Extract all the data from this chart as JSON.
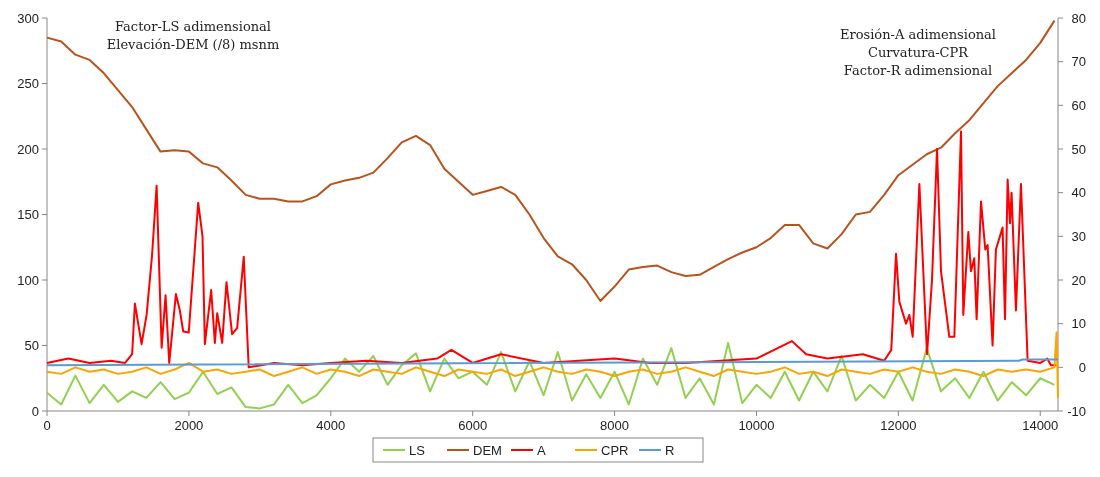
{
  "chart_data": {
    "type": "line",
    "ylabel": "Factor-LS adimensional\nElevación-DEM (/8) msnm",
    "y2label": "Erosión-A adimensional\nCurvatura-CPR\nFactor-R adimensional",
    "x": [
      0,
      200,
      400,
      600,
      800,
      1000,
      1200,
      1400,
      1600,
      1800,
      2000,
      2200,
      2400,
      2600,
      2800,
      3000,
      3200,
      3400,
      3600,
      3800,
      4000,
      4200,
      4400,
      4600,
      4800,
      5000,
      5200,
      5400,
      5600,
      5800,
      6000,
      6200,
      6400,
      6600,
      6800,
      7000,
      7200,
      7400,
      7600,
      7800,
      8000,
      8200,
      8400,
      8600,
      8800,
      9000,
      9200,
      9400,
      9600,
      9800,
      10000,
      10200,
      10400,
      10600,
      10800,
      11000,
      11200,
      11400,
      11600,
      11800,
      12000,
      12200,
      12400,
      12600,
      12800,
      13000,
      13200,
      13400,
      13600,
      13800,
      14000,
      14200
    ],
    "xlim": [
      0,
      14250
    ],
    "xticks": [
      0,
      2000,
      4000,
      6000,
      8000,
      10000,
      12000,
      14000
    ],
    "ylim": [
      0,
      300
    ],
    "yticks": [
      0,
      50,
      100,
      150,
      200,
      250,
      300
    ],
    "y2lim": [
      -10,
      80
    ],
    "y2ticks": [
      -10,
      0,
      10,
      20,
      30,
      40,
      50,
      60,
      70,
      80
    ],
    "legend": "bottom",
    "grid": false,
    "series": [
      {
        "name": "LS",
        "color": "#92d050",
        "values": [
          14,
          5,
          27,
          6,
          20,
          7,
          15,
          10,
          22,
          9,
          14,
          30,
          13,
          18,
          3,
          2,
          5,
          20,
          6,
          12,
          25,
          40,
          30,
          42,
          20,
          35,
          44,
          15,
          40,
          25,
          30,
          20,
          45,
          15,
          38,
          12,
          45,
          8,
          28,
          10,
          30,
          5,
          40,
          20,
          48,
          10,
          25,
          5,
          52,
          6,
          20,
          10,
          30,
          8,
          30,
          15,
          42,
          8,
          20,
          10,
          30,
          8,
          48,
          15,
          25,
          10,
          30,
          8,
          22,
          12,
          25,
          20
        ]
      },
      {
        "name": "DEM",
        "color": "#b9531e",
        "values": [
          285,
          282,
          272,
          268,
          258,
          245,
          232,
          215,
          198,
          199,
          198,
          189,
          186,
          176,
          165,
          162,
          162,
          160,
          160,
          164,
          173,
          176,
          178,
          182,
          193,
          205,
          210,
          203,
          185,
          175,
          165,
          168,
          171,
          165,
          150,
          132,
          118,
          112,
          100,
          84,
          95,
          108,
          110,
          111,
          106,
          103,
          104,
          110,
          116,
          121,
          125,
          132,
          142,
          142,
          128,
          124,
          135,
          150,
          152,
          165,
          180,
          188,
          196,
          201,
          212,
          222,
          235,
          248,
          258,
          268,
          281,
          298
        ]
      },
      {
        "name": "A",
        "color": "#ff0000",
        "axis": "y2",
        "x": [
          0,
          300,
          600,
          900,
          1100,
          1200,
          1239,
          1333,
          1404,
          1480,
          1545,
          1616,
          1671,
          1723,
          1817,
          1873,
          1920,
          1998,
          2131,
          2192,
          2225,
          2314,
          2366,
          2399,
          2469,
          2530,
          2609,
          2680,
          2773,
          2843,
          3200,
          3600,
          4000,
          4500,
          5000,
          5500,
          5700,
          6000,
          6400,
          7000,
          7500,
          8000,
          8500,
          9000,
          9500,
          10000,
          10500,
          10700,
          11000,
          11500,
          11800,
          11900,
          11967,
          12014,
          12108,
          12155,
          12202,
          12296,
          12404,
          12474,
          12545,
          12601,
          12718,
          12789,
          12883,
          12915,
          12986,
          13023,
          13070,
          13103,
          13165,
          13225,
          13258,
          13328,
          13375,
          13469,
          13503,
          13540,
          13573,
          13596,
          13657,
          13728,
          13822,
          14000,
          14100,
          14150,
          14230
        ],
        "values": [
          1,
          2,
          1,
          1.5,
          1,
          3,
          14.6,
          5.3,
          12,
          25.5,
          41.6,
          4.5,
          16.5,
          1,
          16.8,
          13,
          8.2,
          8,
          37.7,
          30,
          5.3,
          17.7,
          5.6,
          12.4,
          5.6,
          19.5,
          7.6,
          9,
          25.3,
          0,
          1,
          0.5,
          1,
          1.5,
          1,
          2,
          4,
          1,
          3,
          1,
          1.5,
          2,
          1,
          1,
          1.5,
          2,
          6,
          3,
          2,
          3,
          1.5,
          4,
          26,
          15,
          10,
          12,
          7,
          42,
          3,
          20,
          50,
          22,
          7,
          7,
          54,
          12,
          31,
          22,
          25,
          11,
          38,
          27,
          28,
          5,
          27,
          32,
          11,
          43,
          33,
          40,
          13,
          42,
          1.5,
          1,
          2,
          0.5,
          0.5
        ]
      },
      {
        "name": "CPR",
        "color": "#f9a602",
        "axis": "y2",
        "x": [
          0,
          200,
          400,
          600,
          800,
          1000,
          1200,
          1400,
          1600,
          1800,
          2000,
          2200,
          2400,
          2600,
          2800,
          3000,
          3200,
          3400,
          3600,
          3800,
          4000,
          4200,
          4400,
          4600,
          4800,
          5000,
          5200,
          5400,
          5600,
          5800,
          6000,
          6200,
          6400,
          6600,
          6800,
          7000,
          7200,
          7400,
          7600,
          7800,
          8000,
          8200,
          8400,
          8600,
          8800,
          9000,
          9200,
          9400,
          9600,
          9800,
          10000,
          10200,
          10400,
          10600,
          10800,
          11000,
          11200,
          11400,
          11600,
          11800,
          12000,
          12200,
          12400,
          12600,
          12800,
          13000,
          13200,
          13400,
          13600,
          13800,
          14000,
          14200,
          14230,
          14250
        ],
        "values": [
          -1,
          -1.5,
          0,
          -1,
          -0.5,
          -1.5,
          -1,
          0,
          -1.5,
          -0.5,
          1,
          -1,
          -0.5,
          -1.5,
          -1,
          -0.5,
          -2,
          -1,
          0,
          -1.5,
          -0.5,
          -1,
          -2,
          -0.5,
          -1,
          -1.5,
          0,
          -1,
          -2,
          -0.5,
          -1,
          -1.5,
          -0.5,
          -2,
          -1,
          0,
          -1,
          -1.5,
          -0.5,
          -1,
          -2,
          -1,
          -0.5,
          -1.5,
          -1,
          0,
          -1,
          -2,
          -0.5,
          -1,
          -1.5,
          -1,
          0,
          -1.5,
          -1,
          -2,
          -0.5,
          -1,
          -1.5,
          -0.5,
          -1,
          0,
          -1,
          -1.5,
          -0.5,
          -1,
          -2,
          -0.5,
          -1,
          -0.5,
          -1,
          0,
          8,
          -7
        ]
      },
      {
        "name": "R",
        "color": "#5b9bd5",
        "axis": "y2",
        "x": [
          0,
          13700,
          13750,
          14250
        ],
        "values": [
          0.5,
          1.5,
          1.8,
          1.8
        ]
      }
    ]
  }
}
